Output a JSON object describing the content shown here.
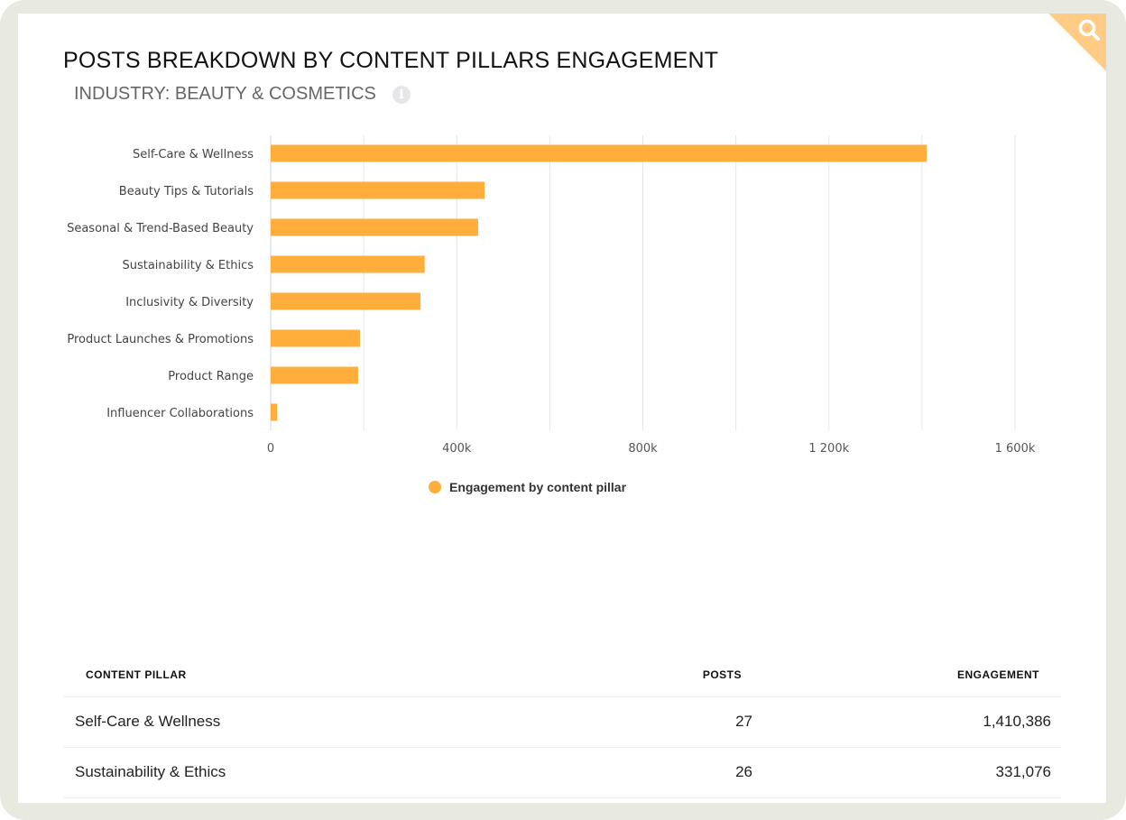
{
  "header": {
    "title": "POSTS BREAKDOWN BY CONTENT PILLARS ENGAGEMENT",
    "subtitle": "INDUSTRY: BEAUTY & COSMETICS",
    "info_icon": "i"
  },
  "colors": {
    "bar": "#ffad3b",
    "corner": "#fecc85"
  },
  "chart_data": {
    "type": "bar",
    "orientation": "horizontal",
    "categories": [
      "Self-Care & Wellness",
      "Beauty Tips & Tutorials",
      "Seasonal & Trend-Based Beauty",
      "Sustainability & Ethics",
      "Inclusivity & Diversity",
      "Product Launches & Promotions",
      "Product Range",
      "Influencer Collaborations"
    ],
    "series": [
      {
        "name": "Engagement by content pillar",
        "values": [
          1410386,
          460000,
          446000,
          331076,
          322000,
          192000,
          188000,
          14000
        ]
      }
    ],
    "xlim": [
      0,
      1600000
    ],
    "xticks": [
      0,
      400000,
      800000,
      1200000,
      1600000
    ],
    "xtick_labels": [
      "0",
      "400k",
      "800k",
      "1 200k",
      "1 600k"
    ],
    "grid": true,
    "legend": "bottom-center"
  },
  "table": {
    "headers": [
      "CONTENT PILLAR",
      "POSTS",
      "ENGAGEMENT"
    ],
    "rows": [
      [
        "Self-Care & Wellness",
        "27",
        "1,410,386"
      ],
      [
        "Sustainability & Ethics",
        "26",
        "331,076"
      ]
    ]
  }
}
